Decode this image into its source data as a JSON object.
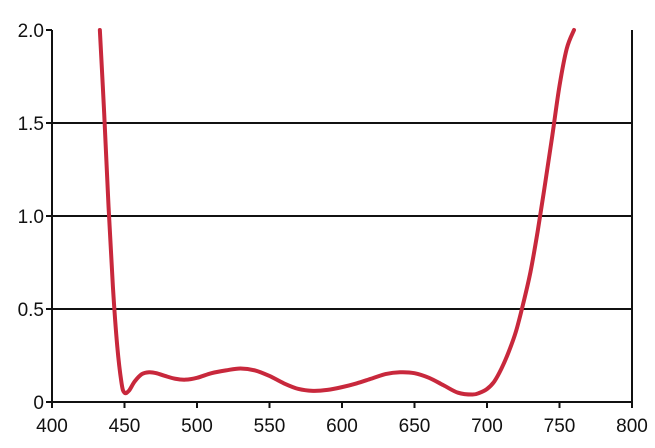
{
  "chart_data": {
    "type": "line",
    "title": "",
    "xlabel": "",
    "ylabel": "",
    "xlim": [
      400,
      800
    ],
    "ylim": [
      0,
      2.0
    ],
    "x_ticks": [
      400,
      450,
      500,
      550,
      600,
      650,
      700,
      750,
      800
    ],
    "x_tick_labels": [
      "400",
      "450",
      "500",
      "550",
      "600",
      "650",
      "700",
      "750",
      "800"
    ],
    "y_ticks": [
      0,
      0.5,
      1.0,
      1.5,
      2.0
    ],
    "y_tick_labels": [
      "0",
      "0.5",
      "1.0",
      "1.5",
      "2.0"
    ],
    "grid": "horizontal",
    "legend": "none",
    "colors": {
      "line": "#c8283c",
      "axis": "#111111",
      "grid": "#111111"
    },
    "series": [
      {
        "x": [
          433,
          436,
          439,
          442,
          445,
          448,
          450,
          453,
          457,
          462,
          467,
          472,
          478,
          485,
          492,
          500,
          510,
          520,
          530,
          540,
          550,
          560,
          570,
          580,
          590,
          600,
          610,
          620,
          630,
          640,
          650,
          660,
          670,
          680,
          690,
          695,
          700,
          705,
          710,
          715,
          720,
          725,
          730,
          735,
          740,
          745,
          750,
          755,
          760
        ],
        "y": [
          2.0,
          1.55,
          1.05,
          0.62,
          0.3,
          0.1,
          0.05,
          0.06,
          0.11,
          0.15,
          0.16,
          0.155,
          0.14,
          0.125,
          0.12,
          0.13,
          0.155,
          0.17,
          0.18,
          0.17,
          0.14,
          0.1,
          0.07,
          0.06,
          0.065,
          0.08,
          0.1,
          0.125,
          0.15,
          0.16,
          0.155,
          0.13,
          0.09,
          0.05,
          0.04,
          0.05,
          0.07,
          0.11,
          0.18,
          0.27,
          0.38,
          0.53,
          0.7,
          0.92,
          1.17,
          1.43,
          1.7,
          1.9,
          2.0
        ]
      }
    ]
  }
}
